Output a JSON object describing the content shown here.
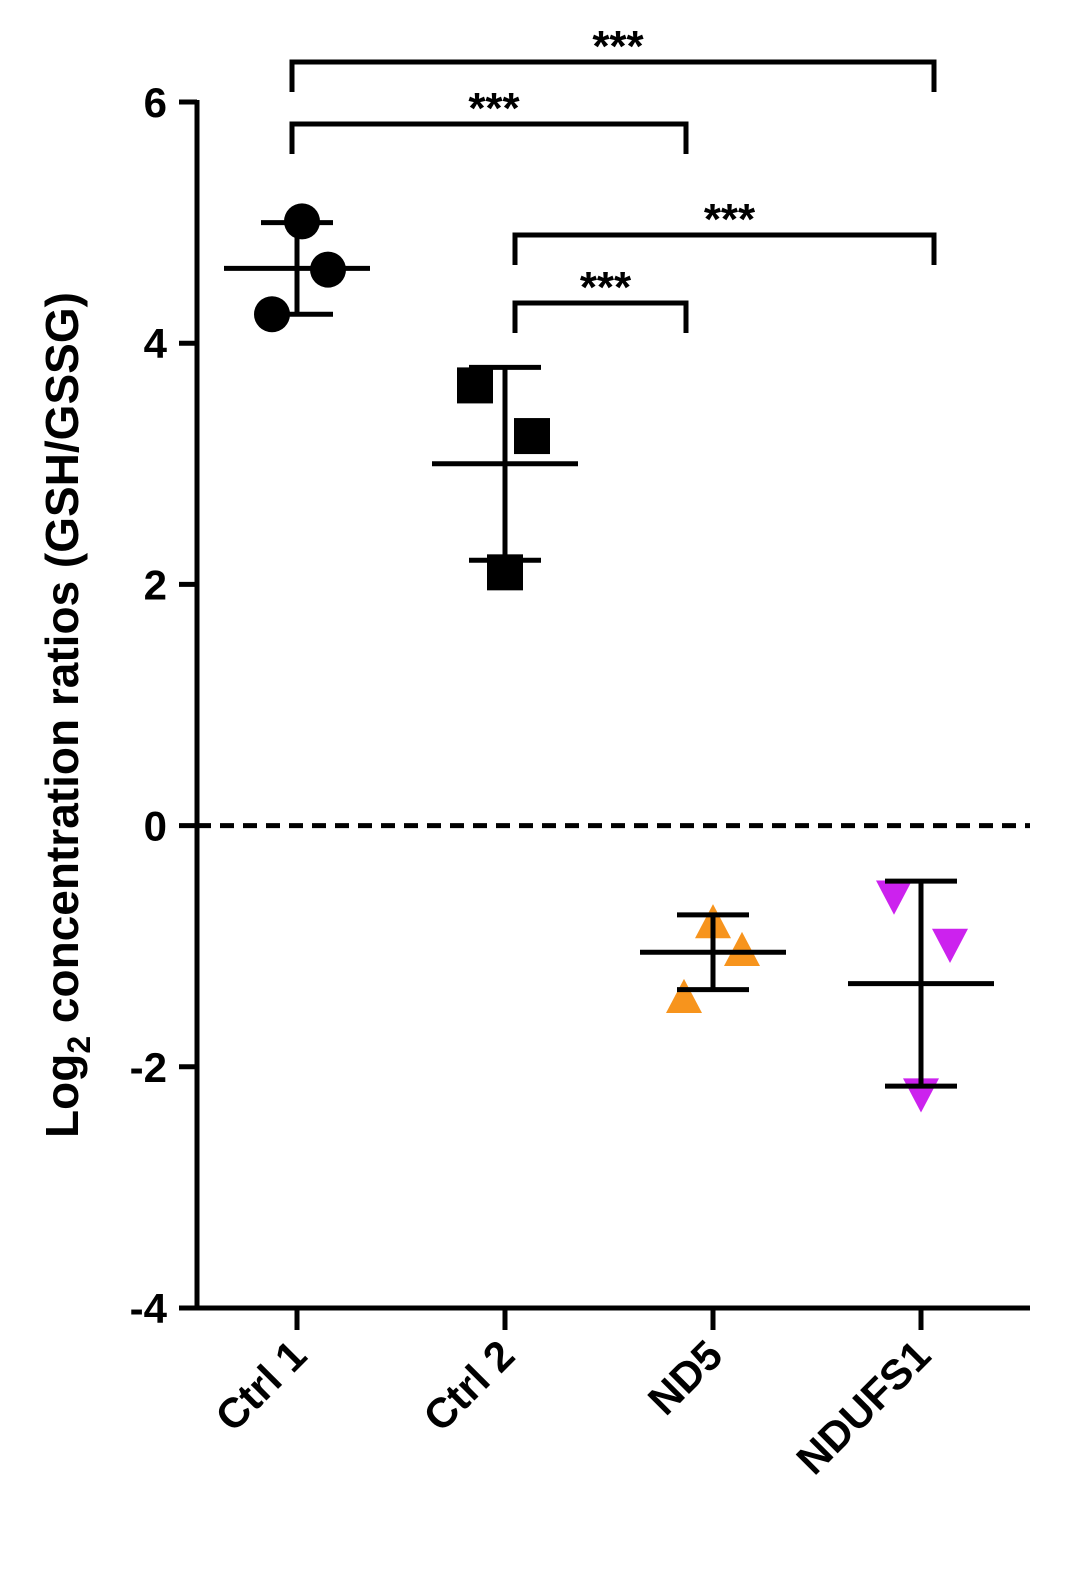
{
  "chart_data": {
    "type": "scatter",
    "ylabel": {
      "main": "Log",
      "sub": "2",
      "rest": " concentration ratios (GSH/GSSG)"
    },
    "categories": [
      "Ctrl 1",
      "Ctrl 2",
      "ND5",
      "NDUFS1"
    ],
    "groups": [
      {
        "color": "#000000",
        "marker": "circle",
        "values": [
          5.01,
          4.61,
          4.24
        ],
        "mean": 4.62,
        "sd": 0.38
      },
      {
        "color": "#000000",
        "marker": "square",
        "values": [
          3.65,
          3.23,
          2.1
        ],
        "mean": 3.0,
        "sd": 0.8
      },
      {
        "color": "#f7941d",
        "marker": "triangle-up",
        "values": [
          -0.8,
          -1.03,
          -1.42
        ],
        "mean": -1.05,
        "sd": 0.31
      },
      {
        "color": "#cc22ee",
        "marker": "triangle-down",
        "values": [
          -0.59,
          -0.99,
          -2.23
        ],
        "mean": -1.31,
        "sd": 0.85
      }
    ],
    "ylim": [
      -4,
      6
    ],
    "yticks": [
      -4,
      -2,
      0,
      2,
      4,
      6
    ],
    "hline": 0,
    "brackets": [
      {
        "from": 0,
        "to": 3,
        "label": "***"
      },
      {
        "from": 0,
        "to": 2,
        "label": "***"
      },
      {
        "from": 1,
        "to": 3,
        "label": "***"
      },
      {
        "from": 1,
        "to": 2,
        "label": "***"
      }
    ]
  }
}
